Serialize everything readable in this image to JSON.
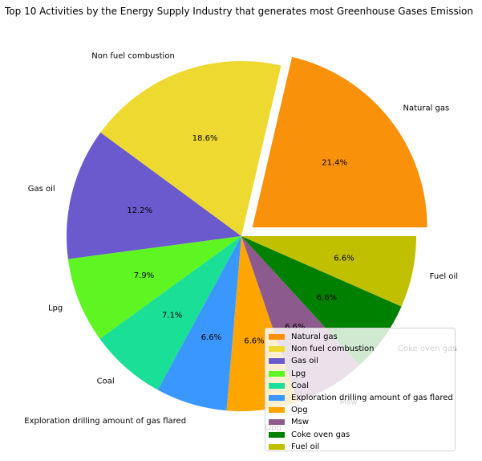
{
  "chart_data": {
    "type": "pie",
    "title": "Top 10 Activities by the Energy Supply Industry that generates most Greenhouse Gases Emission",
    "labels": [
      "Natural gas",
      "Non fuel combustion",
      "Gas oil",
      "Lpg",
      "Coal",
      "Exploration drilling amount of gas flared",
      "Opg",
      "Msw",
      "Coke oven gas",
      "Fuel oil"
    ],
    "values": [
      21.4,
      18.6,
      12.2,
      7.9,
      7.1,
      6.6,
      6.6,
      6.6,
      6.6,
      6.6
    ],
    "value_labels": [
      "21.4%",
      "18.6%",
      "12.2%",
      "7.9%",
      "7.1%",
      "6.6%",
      "6.6%",
      "6.6%",
      "6.6%",
      "6.6%"
    ],
    "colors": [
      "#f9920a",
      "#eed930",
      "#6a5acd",
      "#5ef523",
      "#1adf96",
      "#3a97ff",
      "#ffa500",
      "#8d5a8d",
      "#008000",
      "#c0c000"
    ],
    "explode": [
      0.08,
      0,
      0,
      0,
      0,
      0,
      0,
      0,
      0,
      0
    ],
    "start_angle": 0,
    "direction": "counterclockwise",
    "legend_position": "lower-right"
  }
}
